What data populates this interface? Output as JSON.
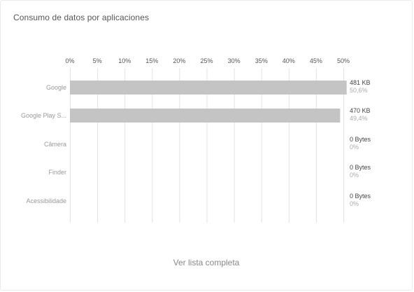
{
  "card": {
    "title": "Consumo de datos por aplicaciones",
    "footer_link": "Ver lista completa"
  },
  "chart_data": {
    "type": "bar",
    "orientation": "horizontal",
    "title": "Consumo de datos por aplicaciones",
    "xlabel": "",
    "ylabel": "",
    "xlim": [
      0,
      50
    ],
    "x_ticks": [
      "0%",
      "5%",
      "10%",
      "15%",
      "20%",
      "25%",
      "30%",
      "35%",
      "40%",
      "45%",
      "50%"
    ],
    "grid": true,
    "categories": [
      "Google",
      "Google Play S...",
      "Câmera",
      "Finder",
      "Acessibilidade"
    ],
    "values": [
      50.6,
      49.4,
      0,
      0,
      0
    ],
    "value_labels": [
      "481 KB",
      "470 KB",
      "0 Bytes",
      "0 Bytes",
      "0 Bytes"
    ],
    "percent_labels": [
      "50,6%",
      "49,4%",
      "0%",
      "0%",
      "0%"
    ],
    "bar_color": "#c4c4c4",
    "grid_color": "#e2e2e2"
  }
}
